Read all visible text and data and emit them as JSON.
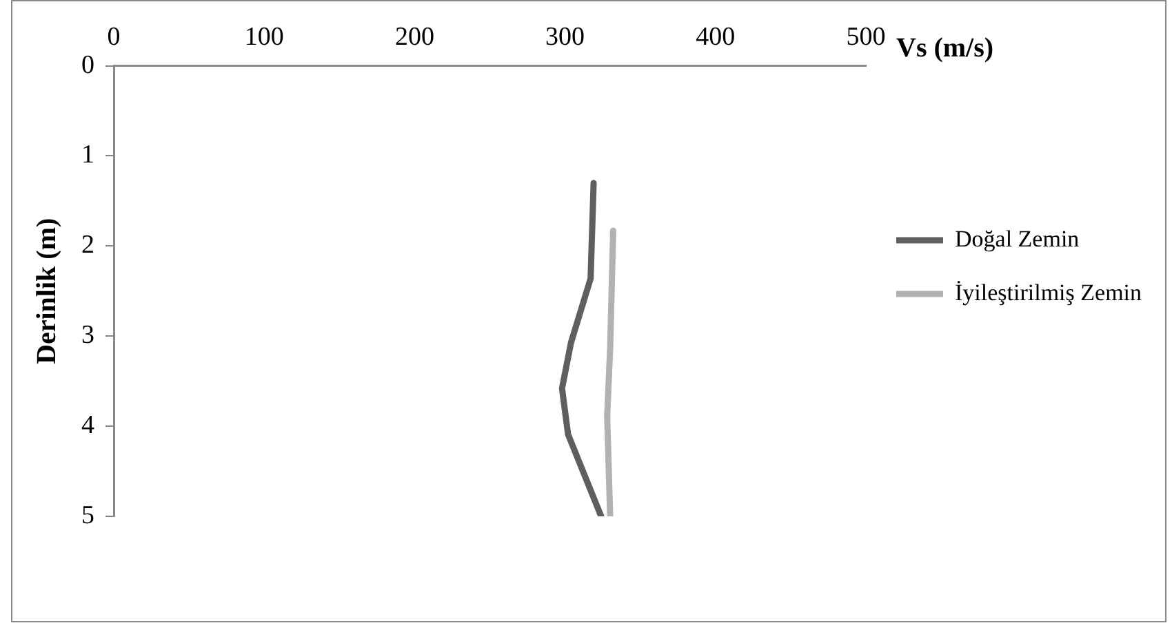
{
  "chart_data": {
    "type": "line",
    "xlabel": "Vs (m/s)",
    "ylabel": "Derinlik (m)",
    "xlim": [
      0,
      500
    ],
    "xticks": [
      0,
      100,
      200,
      300,
      400,
      500
    ],
    "ylim": [
      5,
      0
    ],
    "yticks": [
      0,
      1,
      2,
      3,
      4,
      5
    ],
    "grid": false,
    "legend": "right",
    "marker": "none",
    "line_style": "solid",
    "series": [
      {
        "name": "Doğal Zemin",
        "color": "#5f5f5f",
        "x": [
          319,
          317,
          304,
          298,
          302,
          324
        ],
        "values": [
          1.3,
          2.36,
          3.07,
          3.58,
          4.09,
          5
        ]
      },
      {
        "name": "İyileştirilmiş Zemin",
        "color": "#b2b2b2",
        "x": [
          332,
          330,
          328,
          330
        ],
        "values": [
          1.83,
          3.13,
          3.89,
          5
        ]
      }
    ]
  }
}
